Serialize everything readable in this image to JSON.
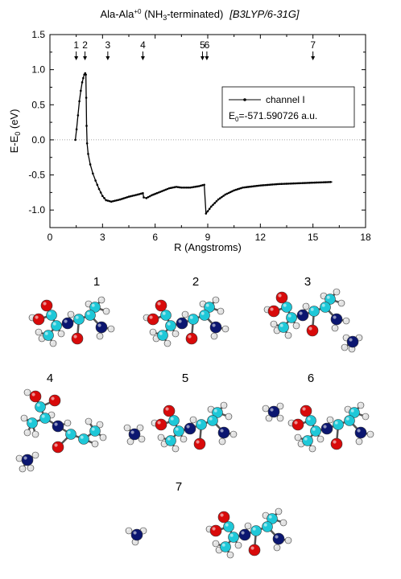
{
  "chart_data": {
    "type": "line",
    "title": {
      "main": "Ala-Ala",
      "charge": "+0",
      "paren_open": " (NH",
      "sub": "3",
      "paren_close": "-terminated)",
      "method": "[B3LYP/6-31G]"
    },
    "xlabel": "R (Angstroms)",
    "ylabel": {
      "main": "E-E",
      "sub": "0",
      "unit": " (eV)"
    },
    "xlim": [
      0,
      18
    ],
    "ylim": [
      -1.25,
      1.5
    ],
    "x_ticks": [
      "0",
      "3",
      "6",
      "9",
      "12",
      "15",
      "18"
    ],
    "y_ticks": [
      "1.5",
      "1.0",
      "0.5",
      "0.0",
      "-0.5",
      "-1.0"
    ],
    "dotted_zero_line": true,
    "legend": {
      "position": "right-middle",
      "series_label": "channel I",
      "energy": {
        "prefix": "E",
        "sub": "0",
        "value": "=-571.590726 a.u."
      }
    },
    "markers": [
      {
        "label": "1",
        "x": 1.5
      },
      {
        "label": "2",
        "x": 2.0
      },
      {
        "label": "3",
        "x": 3.3
      },
      {
        "label": "4",
        "x": 5.3
      },
      {
        "label": "5",
        "x": 8.7
      },
      {
        "label": "6",
        "x": 8.95
      },
      {
        "label": "7",
        "x": 15.0
      }
    ],
    "series": [
      {
        "name": "channel I",
        "color": "#000000",
        "points": [
          [
            1.45,
            0.0
          ],
          [
            1.52,
            0.15
          ],
          [
            1.6,
            0.35
          ],
          [
            1.68,
            0.55
          ],
          [
            1.76,
            0.7
          ],
          [
            1.84,
            0.82
          ],
          [
            1.9,
            0.88
          ],
          [
            1.96,
            0.93
          ],
          [
            2.01,
            0.95
          ],
          [
            2.05,
            0.93
          ],
          [
            2.07,
            0.6
          ],
          [
            2.09,
            0.2
          ],
          [
            2.12,
            -0.05
          ],
          [
            2.18,
            -0.2
          ],
          [
            2.3,
            -0.35
          ],
          [
            2.45,
            -0.48
          ],
          [
            2.6,
            -0.58
          ],
          [
            2.8,
            -0.7
          ],
          [
            3.0,
            -0.8
          ],
          [
            3.2,
            -0.86
          ],
          [
            3.5,
            -0.88
          ],
          [
            4.0,
            -0.85
          ],
          [
            4.5,
            -0.81
          ],
          [
            5.0,
            -0.78
          ],
          [
            5.3,
            -0.76
          ],
          [
            5.35,
            -0.82
          ],
          [
            5.5,
            -0.83
          ],
          [
            5.8,
            -0.79
          ],
          [
            6.3,
            -0.74
          ],
          [
            6.8,
            -0.69
          ],
          [
            7.2,
            -0.67
          ],
          [
            7.5,
            -0.68
          ],
          [
            8.0,
            -0.68
          ],
          [
            8.5,
            -0.66
          ],
          [
            8.8,
            -0.64
          ],
          [
            8.9,
            -1.05
          ],
          [
            9.2,
            -0.95
          ],
          [
            9.6,
            -0.85
          ],
          [
            10.0,
            -0.78
          ],
          [
            10.5,
            -0.72
          ],
          [
            11.0,
            -0.68
          ],
          [
            12.0,
            -0.65
          ],
          [
            13.0,
            -0.63
          ],
          [
            14.0,
            -0.62
          ],
          [
            15.0,
            -0.61
          ],
          [
            16.1,
            -0.6
          ]
        ]
      }
    ]
  },
  "structures": [
    {
      "label": "1"
    },
    {
      "label": "2"
    },
    {
      "label": "3"
    },
    {
      "label": "4"
    },
    {
      "label": "5"
    },
    {
      "label": "6"
    },
    {
      "label": "7"
    }
  ],
  "colors": {
    "carbon": "#1ec8d8",
    "oxygen": "#d80a0a",
    "nitrogen": "#0b1670",
    "hydrogen": "#e2e2e2"
  }
}
